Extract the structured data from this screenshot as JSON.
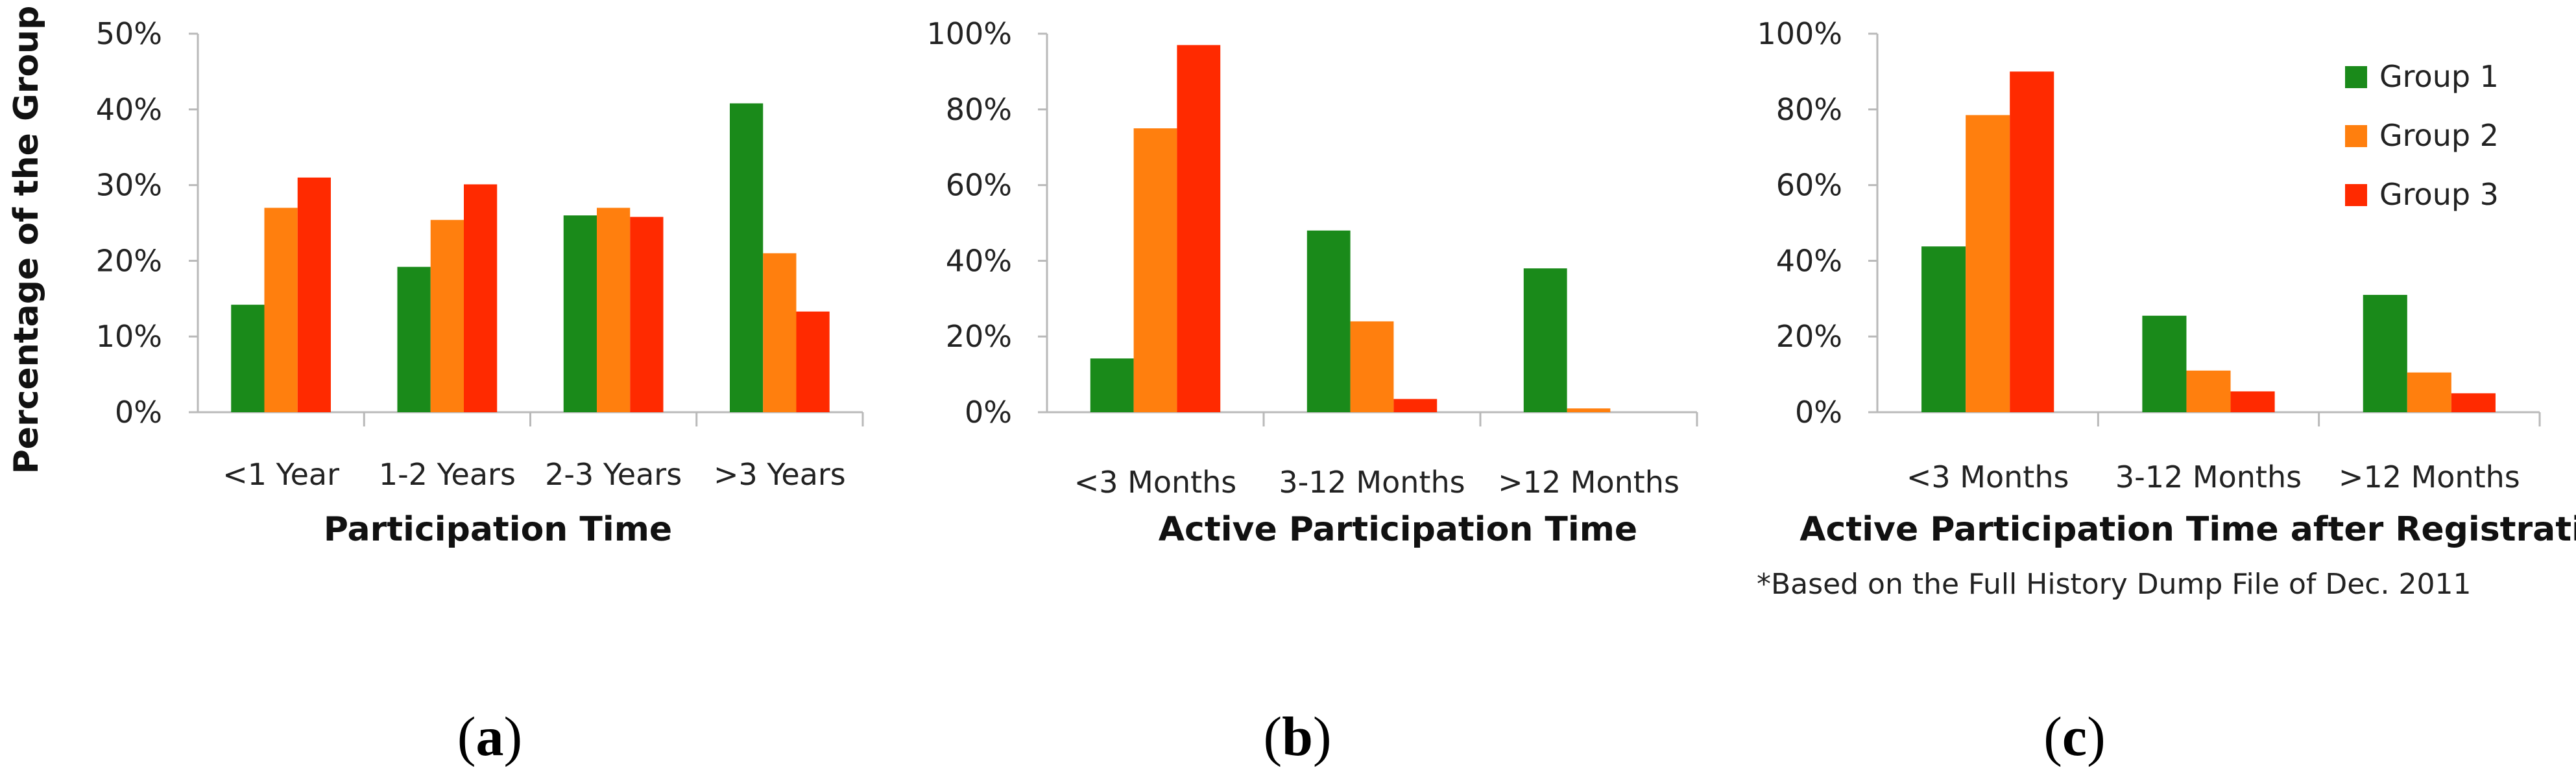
{
  "colors": {
    "Group 1": "#1a8a1a",
    "Group 2": "#ff7f0e",
    "Group 3": "#ff2a00"
  },
  "legend": [
    "Group 1",
    "Group 2",
    "Group 3"
  ],
  "shared_ylabel": "Percentage of the Group",
  "note": "*Based on the Full History Dump File of Dec. 2011",
  "panel_labels": [
    {
      "open": "(",
      "letter": "a",
      "close": ")"
    },
    {
      "open": "(",
      "letter": "b",
      "close": ")"
    },
    {
      "open": "(",
      "letter": "c",
      "close": ")"
    }
  ],
  "chart_data": [
    {
      "type": "bar",
      "xlabel": "Participation Time",
      "ylabel": "Percentage of the Group",
      "categories": [
        "<1 Year",
        "1-2 Years",
        "2-3 Years",
        ">3 Years"
      ],
      "ylim": [
        0,
        50
      ],
      "yticks": [
        "0%",
        "10%",
        "20%",
        "30%",
        "40%",
        "50%"
      ],
      "series": [
        {
          "name": "Group 1",
          "values": [
            14.2,
            19.2,
            26,
            40.8
          ]
        },
        {
          "name": "Group 2",
          "values": [
            27,
            25.4,
            27,
            21
          ]
        },
        {
          "name": "Group 3",
          "values": [
            31,
            30.1,
            25.8,
            13.3
          ]
        }
      ]
    },
    {
      "type": "bar",
      "xlabel": "Active Participation Time",
      "categories": [
        "<3 Months",
        "3-12 Months",
        ">12 Months"
      ],
      "ylim": [
        0,
        100
      ],
      "yticks": [
        "0%",
        "20%",
        "40%",
        "60%",
        "80%",
        "100%"
      ],
      "series": [
        {
          "name": "Group 1",
          "values": [
            14.2,
            48,
            38
          ]
        },
        {
          "name": "Group 2",
          "values": [
            75,
            24,
            1
          ]
        },
        {
          "name": "Group 3",
          "values": [
            97,
            3.5,
            0
          ]
        }
      ]
    },
    {
      "type": "bar",
      "xlabel": "Active Participation Time after Registration",
      "categories": [
        "<3 Months",
        "3-12 Months",
        ">12 Months"
      ],
      "ylim": [
        0,
        100
      ],
      "yticks": [
        "0%",
        "20%",
        "40%",
        "60%",
        "80%",
        "100%"
      ],
      "legend_position": "top-right",
      "series": [
        {
          "name": "Group 1",
          "values": [
            43.8,
            25.5,
            31
          ]
        },
        {
          "name": "Group 2",
          "values": [
            78.5,
            11,
            10.5
          ]
        },
        {
          "name": "Group 3",
          "values": [
            90,
            5.5,
            5
          ]
        }
      ]
    }
  ]
}
